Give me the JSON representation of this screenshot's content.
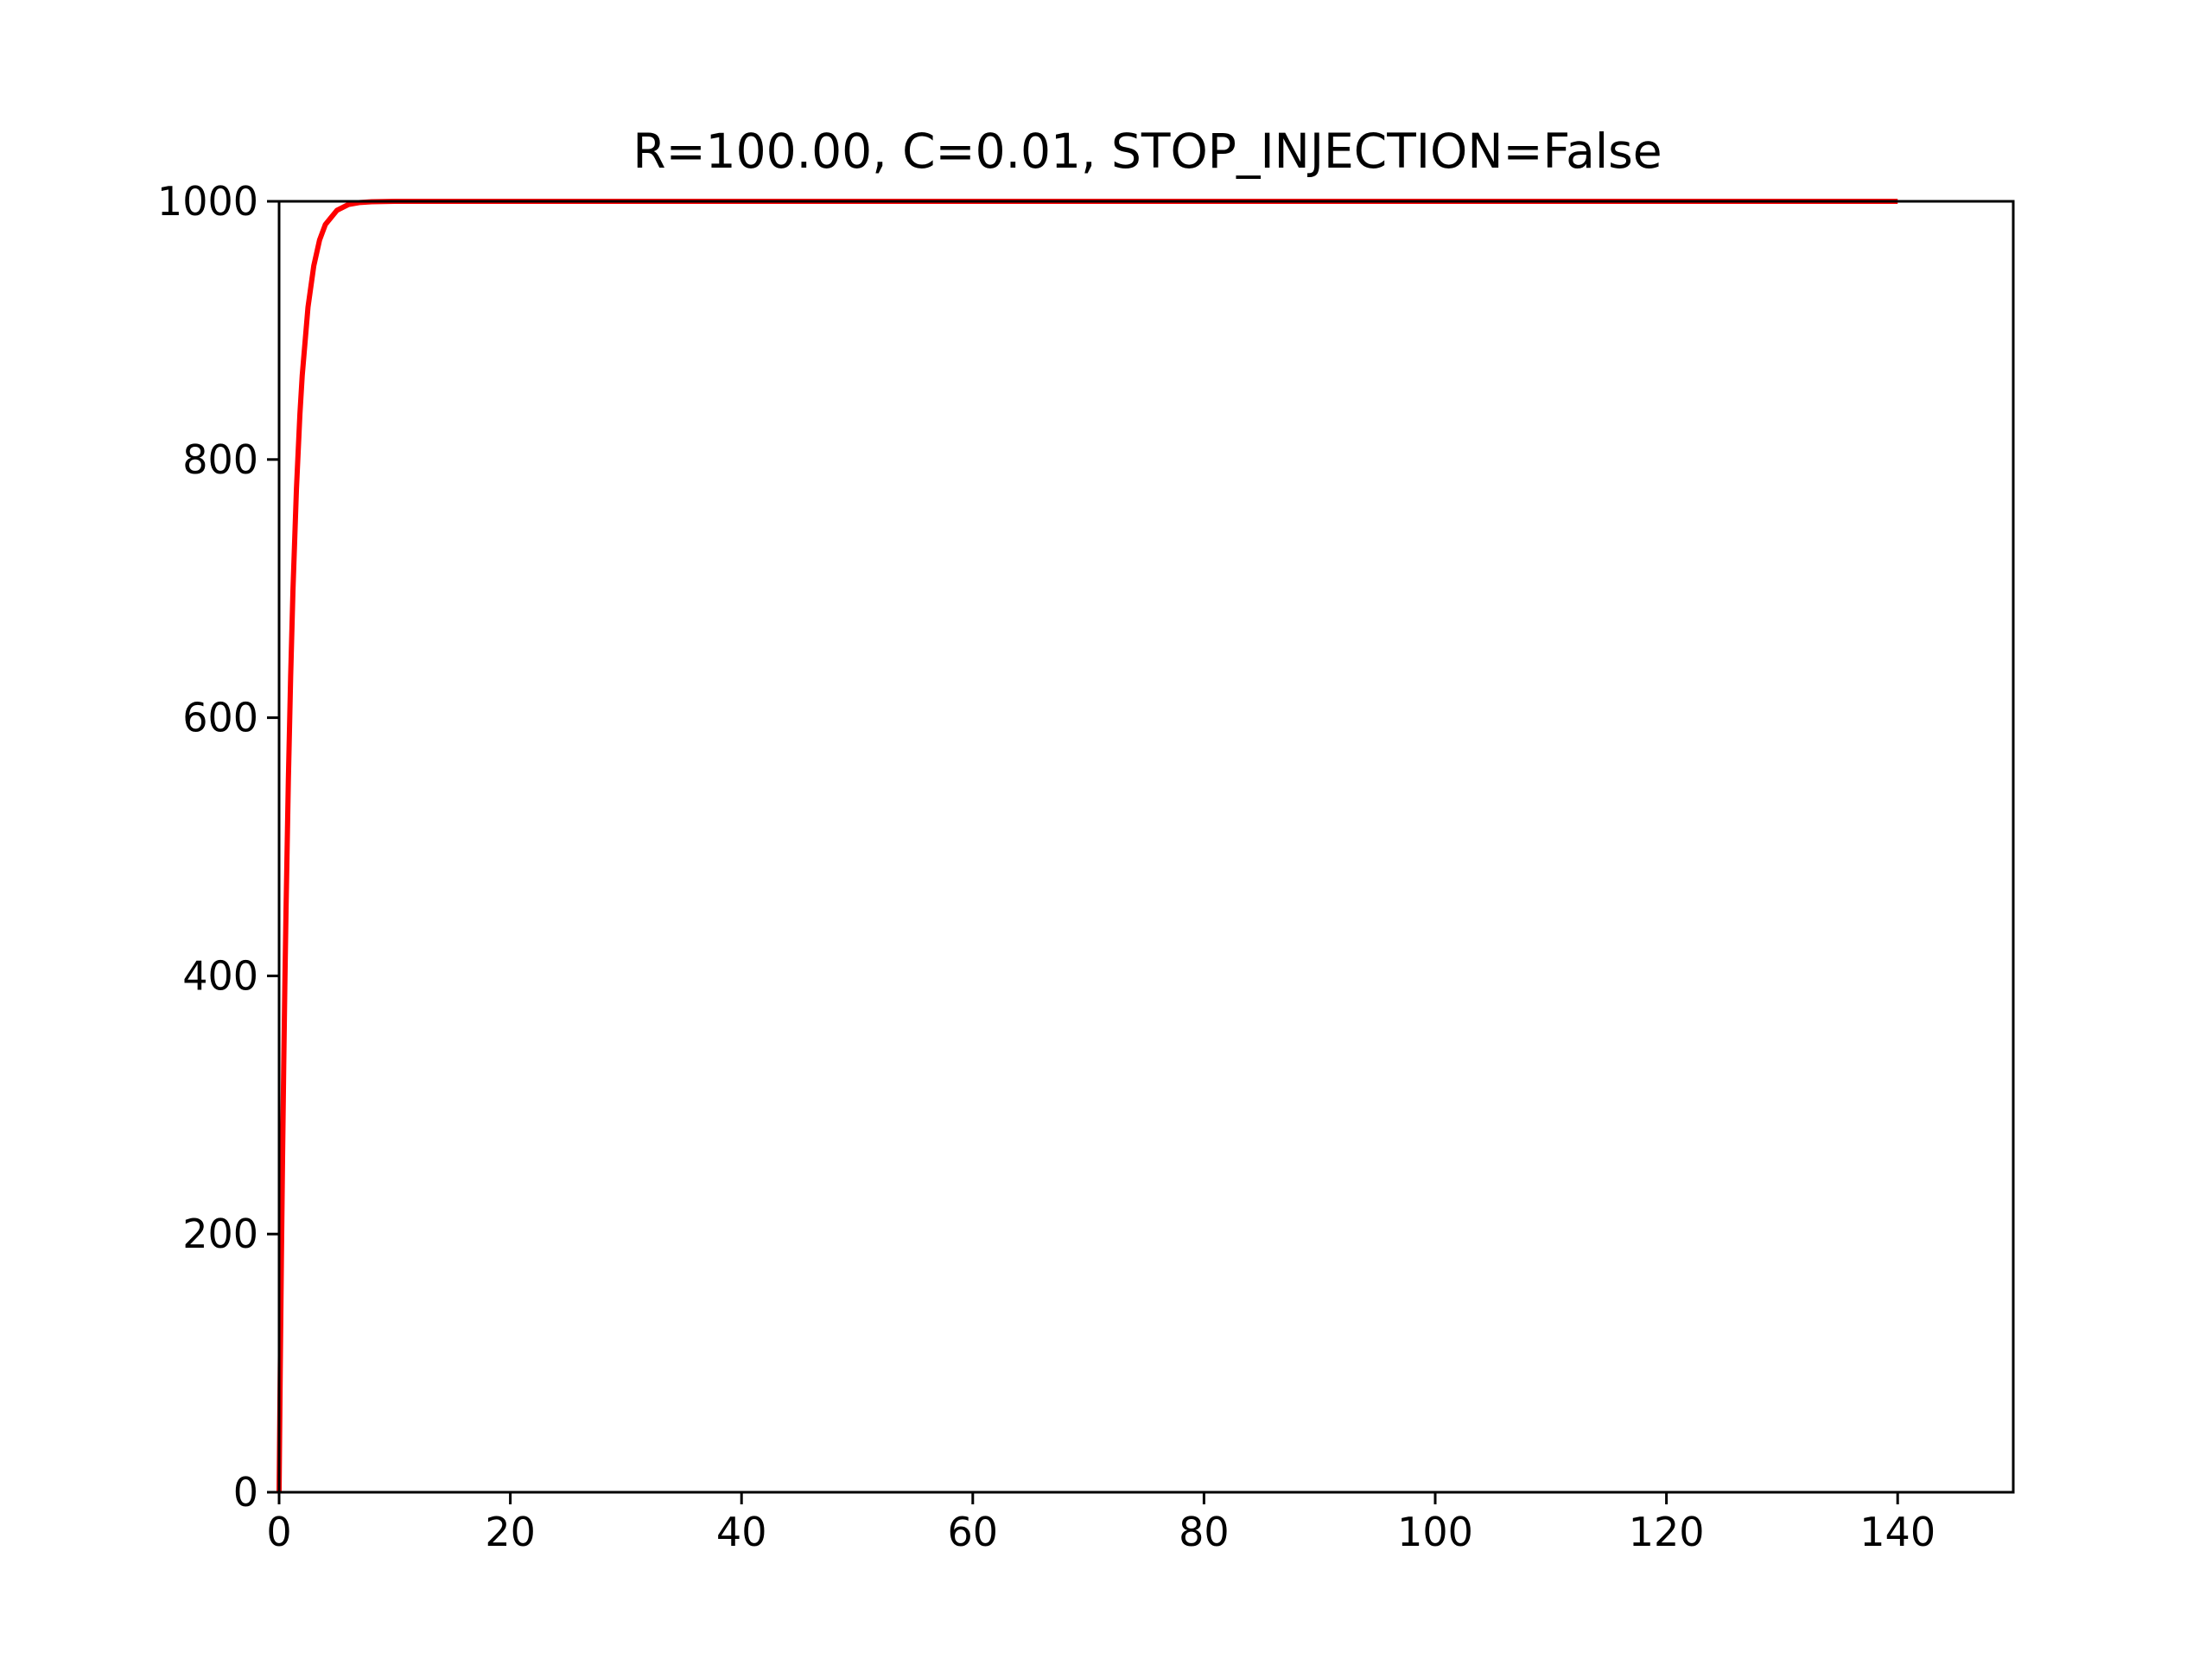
{
  "chart_data": {
    "type": "line",
    "title": "R=100.00, C=0.01, STOP_INJECTION=False",
    "xlabel": "",
    "ylabel": "",
    "xlim": [
      0,
      150
    ],
    "ylim": [
      0,
      1000
    ],
    "xticks": [
      0,
      20,
      40,
      60,
      80,
      100,
      120,
      140
    ],
    "yticks": [
      0,
      200,
      400,
      600,
      800,
      1000
    ],
    "xtick_labels": [
      "0",
      "20",
      "40",
      "60",
      "80",
      "100",
      "120",
      "140"
    ],
    "ytick_labels": [
      "0",
      "200",
      "400",
      "600",
      "800",
      "1000"
    ],
    "grid": false,
    "legend": "none",
    "series": [
      {
        "color": "#ff0000",
        "x": [
          0,
          0.1,
          0.2,
          0.3,
          0.4,
          0.5,
          0.6,
          0.8,
          1.0,
          1.2,
          1.5,
          1.8,
          2.0,
          2.5,
          3.0,
          3.5,
          4.0,
          5.0,
          6.0,
          7.0,
          8.0,
          10.0,
          15.0,
          20.0,
          40.0,
          60.0,
          80.0,
          100.0,
          120.0,
          140.0
        ],
        "y": [
          0,
          95,
          181,
          259,
          330,
          394,
          451,
          551,
          632,
          699,
          777,
          835,
          865,
          918,
          950,
          970,
          982,
          993,
          997.5,
          999.1,
          999.7,
          1000,
          1000,
          1000,
          1000,
          1000,
          1000,
          1000,
          1000,
          1000
        ]
      }
    ]
  }
}
